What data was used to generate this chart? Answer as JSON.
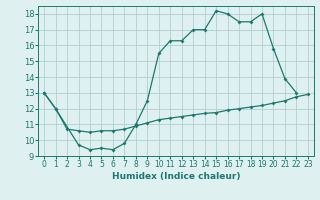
{
  "line1_x": [
    0,
    1,
    3,
    4,
    5,
    6,
    7,
    8,
    9,
    10,
    11,
    12,
    13,
    14,
    15,
    16,
    17,
    18,
    19,
    20,
    21,
    22
  ],
  "line1_y": [
    13,
    12,
    9.7,
    9.4,
    9.5,
    9.4,
    9.8,
    11.0,
    12.5,
    15.5,
    16.3,
    16.3,
    17.0,
    17.0,
    18.2,
    18.0,
    17.5,
    17.5,
    18.0,
    15.8,
    13.9,
    13.0
  ],
  "line2_x": [
    0,
    1,
    2,
    3,
    4,
    5,
    6,
    7,
    8,
    9,
    10,
    11,
    12,
    13,
    14,
    15,
    16,
    17,
    18,
    19,
    20,
    21,
    22,
    23
  ],
  "line2_y": [
    13,
    12,
    10.7,
    10.6,
    10.5,
    10.6,
    10.6,
    10.7,
    10.9,
    11.1,
    11.3,
    11.4,
    11.5,
    11.6,
    11.7,
    11.75,
    11.9,
    12.0,
    12.1,
    12.2,
    12.35,
    12.5,
    12.75,
    12.9
  ],
  "line_color": "#1a7a6e",
  "bg_color": "#dff0f0",
  "grid_color": "#b0cece",
  "xlabel": "Humidex (Indice chaleur)",
  "xlim": [
    -0.5,
    23.5
  ],
  "ylim": [
    9,
    18.5
  ],
  "yticks": [
    9,
    10,
    11,
    12,
    13,
    14,
    15,
    16,
    17,
    18
  ],
  "xticks": [
    0,
    1,
    2,
    3,
    4,
    5,
    6,
    7,
    8,
    9,
    10,
    11,
    12,
    13,
    14,
    15,
    16,
    17,
    18,
    19,
    20,
    21,
    22,
    23
  ],
  "title_fontsize": 7,
  "xlabel_fontsize": 6.5,
  "tick_fontsize": 5.5
}
